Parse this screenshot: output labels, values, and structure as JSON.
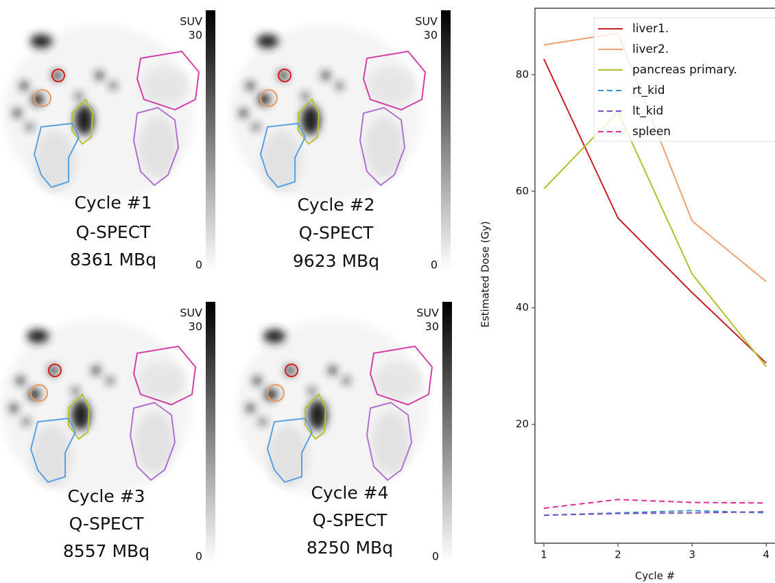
{
  "panels": [
    {
      "lines": [
        "Cycle #1",
        "Q-SPECT",
        "8361 MBq"
      ],
      "colorbar_label": "SUV",
      "colorbar_ticks": [
        0,
        30
      ]
    },
    {
      "lines": [
        "Cycle #2",
        "Q-SPECT",
        "9623 MBq"
      ],
      "colorbar_label": "SUV",
      "colorbar_ticks": [
        0,
        30
      ]
    },
    {
      "lines": [
        "Cycle #3",
        "Q-SPECT",
        "8557 MBq"
      ],
      "colorbar_label": "SUV",
      "colorbar_ticks": [
        0,
        30
      ]
    },
    {
      "lines": [
        "Cycle #4",
        "Q-SPECT",
        "8250 MBq"
      ],
      "colorbar_label": "SUV",
      "colorbar_ticks": [
        0,
        30
      ]
    }
  ],
  "chart_data": {
    "type": "line",
    "xlabel": "Cycle #",
    "ylabel": "Estimated Dose (Gy)",
    "x": [
      1,
      2,
      3,
      4
    ],
    "xlim": [
      0.88,
      4.1
    ],
    "xticks": [
      1,
      2,
      3,
      4
    ],
    "ylim": [
      -0.4,
      91.4
    ],
    "yticks": [
      20,
      40,
      60,
      80
    ],
    "legend": "upper right",
    "series": [
      {
        "name": "liver1.",
        "color": "#c8202a",
        "linestyle": "solid",
        "values": [
          82.7,
          55.4,
          42.6,
          30.5
        ]
      },
      {
        "name": "liver2.",
        "color": "#f0a070",
        "linestyle": "solid",
        "values": [
          85.1,
          87.1,
          54.9,
          44.5
        ]
      },
      {
        "name": "pancreas primary.",
        "color": "#b5bd2a",
        "linestyle": "solid",
        "values": [
          60.4,
          73.6,
          45.8,
          29.9
        ]
      },
      {
        "name": "rt_kid",
        "color": "#3a8fd0",
        "linestyle": "dashed",
        "values": [
          4.4,
          4.8,
          5.2,
          4.8
        ]
      },
      {
        "name": "lt_kid",
        "color": "#7a4fc0",
        "linestyle": "dashed",
        "values": [
          4.4,
          4.7,
          4.8,
          5.0
        ]
      },
      {
        "name": "spleen",
        "color": "#e0289a",
        "linestyle": "dashed",
        "values": [
          5.6,
          7.1,
          6.6,
          6.5
        ]
      }
    ]
  }
}
